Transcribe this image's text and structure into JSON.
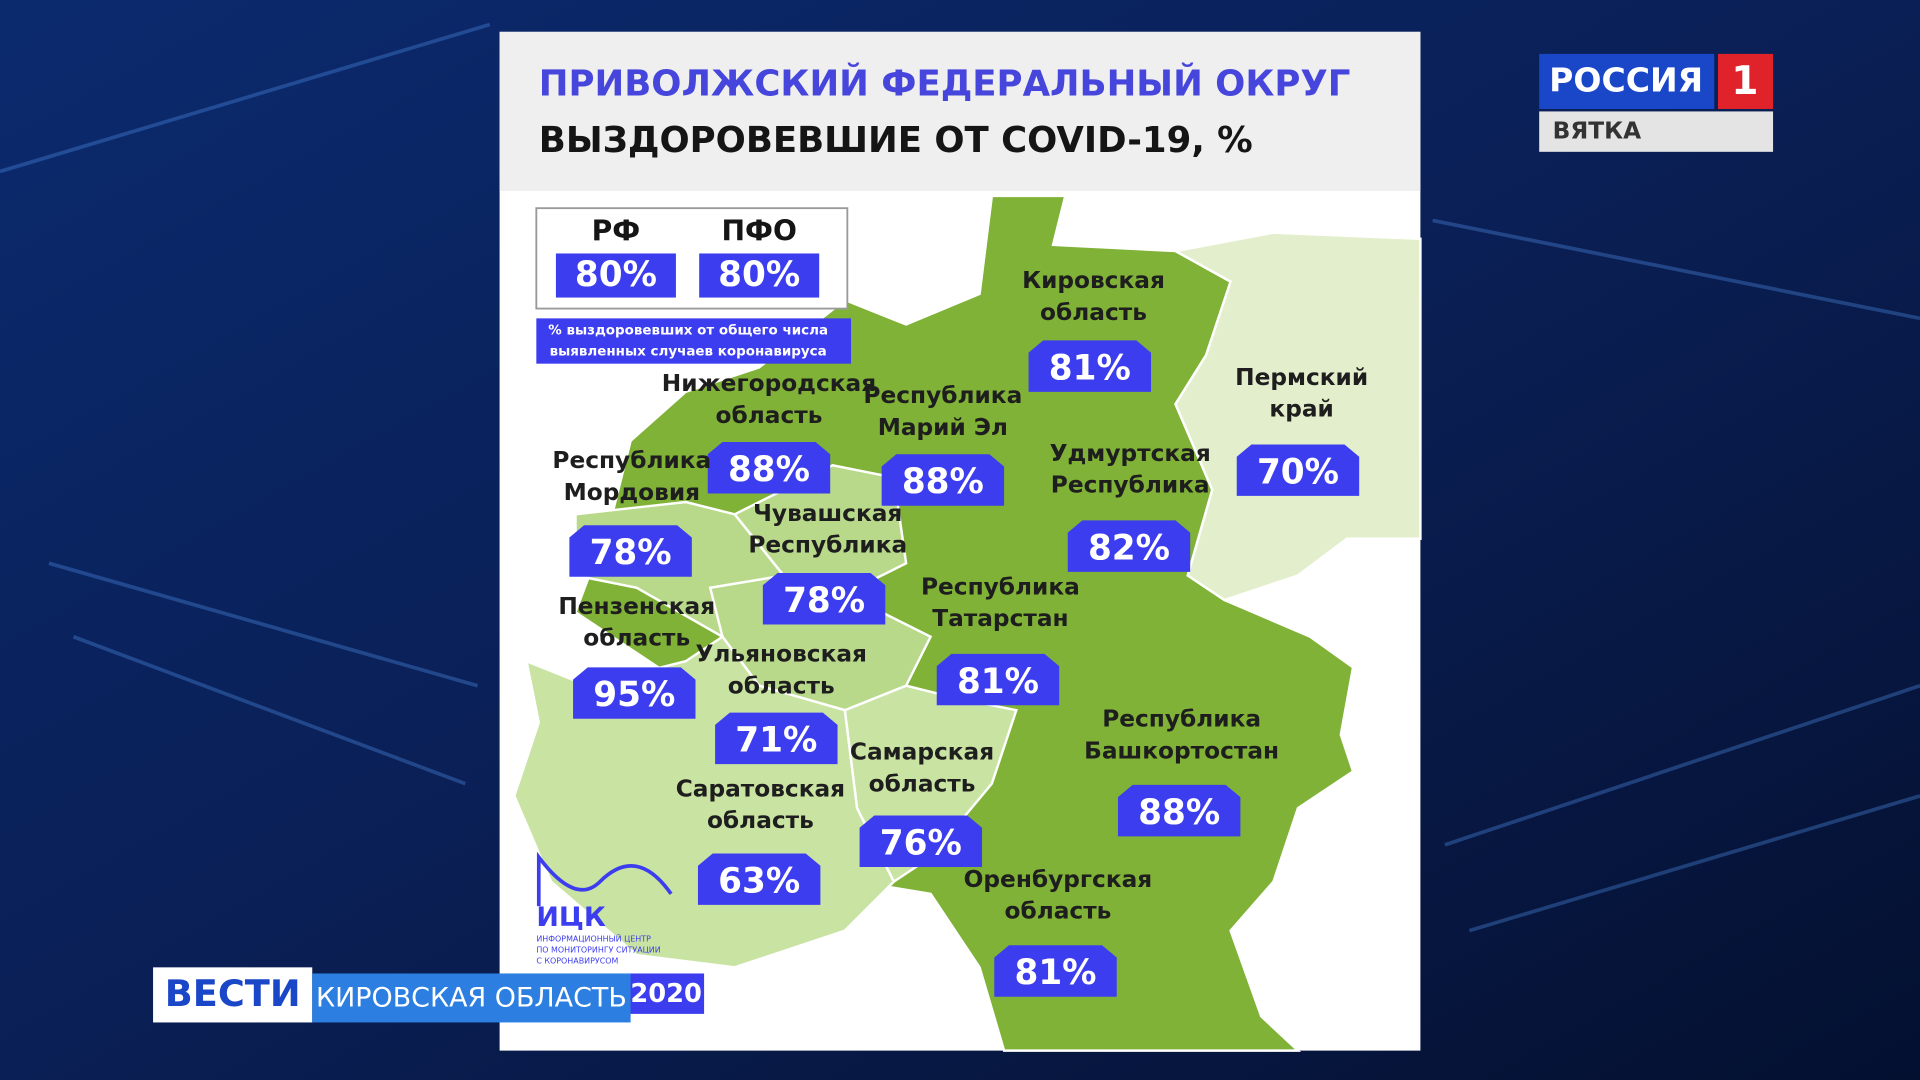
{
  "header": {
    "title": "ПРИВОЛЖСКИЙ ФЕДЕРАЛЬНЫЙ ОКРУГ",
    "subtitle": "ВЫЗДОРОВЕВШИЕ ОТ COVID-19, %"
  },
  "legend": {
    "items": [
      {
        "label": "РФ",
        "value": "80%"
      },
      {
        "label": "ПФО",
        "value": "80%"
      }
    ],
    "note": [
      "% выздоровевших от общего числа",
      "выявленных случаев коронавируса"
    ]
  },
  "regions": [
    {
      "name": [
        "Кировская",
        "область"
      ],
      "value": "81%"
    },
    {
      "name": [
        "Пермский",
        "край"
      ],
      "value": "70%"
    },
    {
      "name": [
        "Нижегородская",
        "область"
      ],
      "value": "88%"
    },
    {
      "name": [
        "Республика",
        "Марий Эл"
      ],
      "value": "88%"
    },
    {
      "name": [
        "Удмуртская",
        "Республика"
      ],
      "value": "82%"
    },
    {
      "name": [
        "Республика",
        "Мордовия"
      ],
      "value": "78%"
    },
    {
      "name": [
        "Чувашская",
        "Республика"
      ],
      "value": "78%"
    },
    {
      "name": [
        "Республика",
        "Татарстан"
      ],
      "value": "81%"
    },
    {
      "name": [
        "Пензенская",
        "область"
      ],
      "value": "95%"
    },
    {
      "name": [
        "Ульяновская",
        "область"
      ],
      "value": "71%"
    },
    {
      "name": [
        "Республика",
        "Башкортостан"
      ],
      "value": "88%"
    },
    {
      "name": [
        "Самарская",
        "область"
      ],
      "value": "76%"
    },
    {
      "name": [
        "Саратовская",
        "область"
      ],
      "value": "63%"
    },
    {
      "name": [
        "Оренбургская",
        "область"
      ],
      "value": "81%"
    }
  ],
  "logo": {
    "name": "ИЦК",
    "lines": [
      "ИНФОРМАЦИОННЫЙ ЦЕНТР",
      "ПО МОНИТОРИНГУ СИТУАЦИИ",
      "С КОРОНАВИРУСОМ"
    ],
    "year": "2020"
  },
  "broadcast": {
    "channel": "РОССИЯ",
    "channel_number": "1",
    "region": "ВЯТКА",
    "show": "ВЕСТИ",
    "ticker": "КИРОВСКАЯ ОБЛАСТЬ"
  }
}
